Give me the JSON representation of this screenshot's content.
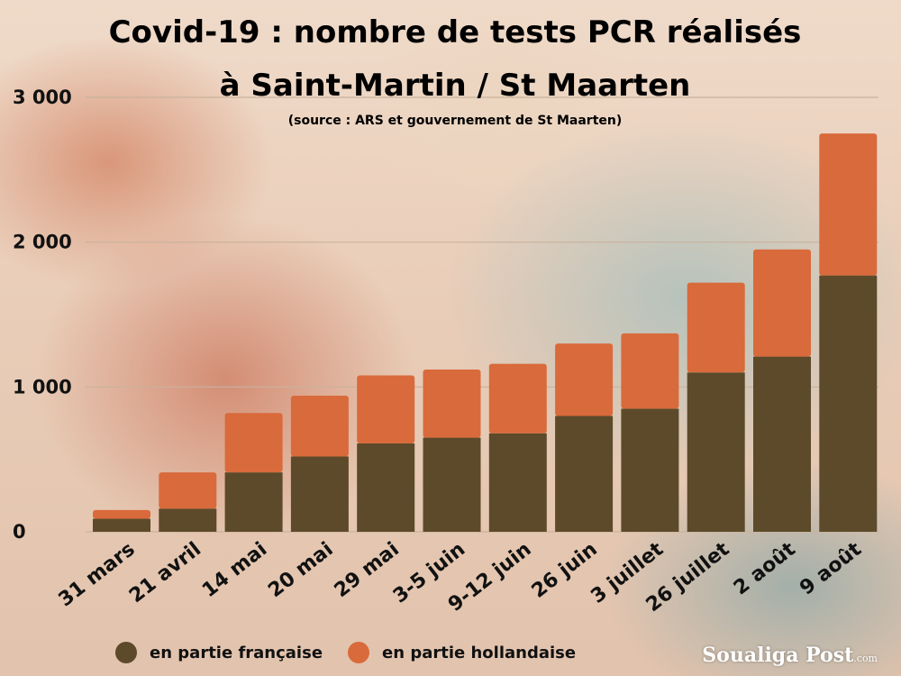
{
  "colors": {
    "fr": "#5c4a2a",
    "nl": "#d96a3b",
    "grid": "#c9b29c"
  },
  "chart_data": {
    "type": "bar",
    "stacked": true,
    "title": "Covid-19 : nombre de tests PCR réalisés",
    "title_line2": "à Saint-Martin / St Maarten",
    "subtitle": "(source : ARS et gouvernement de St Maarten)",
    "categories": [
      "31 mars",
      "21 avril",
      "14 mai",
      "20 mai",
      "29 mai",
      "3-5 juin",
      "9-12  juin",
      "26 juin",
      "3 juillet",
      "26 juillet",
      "2 août",
      "9 août"
    ],
    "series": [
      {
        "name": "en partie française",
        "color": "#5c4a2a",
        "values": [
          90,
          160,
          410,
          520,
          610,
          650,
          680,
          800,
          850,
          1100,
          1210,
          1770
        ]
      },
      {
        "name": "en partie hollandaise",
        "color": "#d96a3b",
        "values": [
          60,
          250,
          410,
          420,
          470,
          470,
          480,
          500,
          520,
          620,
          740,
          980
        ]
      }
    ],
    "yticks": [
      0,
      1000,
      2000,
      3000
    ],
    "ytick_labels": [
      "0",
      "1 000",
      "2 000",
      "3 000"
    ],
    "ylim": [
      0,
      3000
    ],
    "grid": true,
    "legend_position": "bottom-left"
  },
  "legend": {
    "fr": "en partie française",
    "nl": "en partie hollandaise"
  },
  "logo": {
    "name": "Soualiga Post",
    "suffix": ".com"
  }
}
